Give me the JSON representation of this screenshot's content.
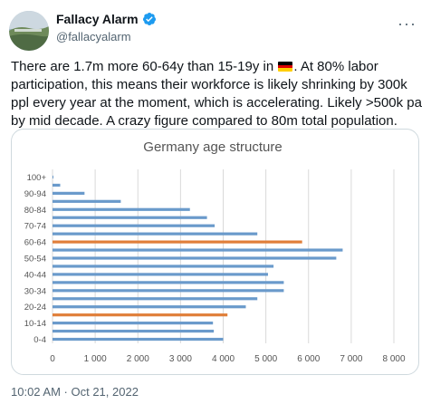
{
  "tweet": {
    "author_name": "Fallacy Alarm",
    "handle": "@fallacyalarm",
    "more_icon": "more-horizontal-icon",
    "text_before_flag": "There are 1.7m more 60-64y than 15-19y in ",
    "flag": "germany-flag",
    "text_after_flag": ". At 80% labor participation, this means their workforce is likely shrinking by 300k ppl every year at the moment, which is accelerating. Likely >500k pa by mid decade. A crazy figure compared to 80m total population.",
    "timestamp": "10:02 AM · Oct 21, 2022"
  },
  "colors": {
    "bar_default": "#6a9acb",
    "bar_highlight": "#e07f3a",
    "verified": "#1d9bf0",
    "grid": "#d9d9d9"
  },
  "chart_data": {
    "type": "bar",
    "orientation": "horizontal",
    "title": "Germany age structure",
    "xlabel": "",
    "ylabel": "",
    "xlim": [
      0,
      8000
    ],
    "xticks": [
      0,
      1000,
      2000,
      3000,
      4000,
      5000,
      6000,
      7000,
      8000
    ],
    "xtick_labels": [
      "0",
      "1 000",
      "2 000",
      "3 000",
      "4 000",
      "5 000",
      "6 000",
      "7 000",
      "8 000"
    ],
    "grid": "vertical",
    "categories": [
      "0-4",
      "5-9",
      "10-14",
      "15-19",
      "20-24",
      "25-29",
      "30-34",
      "35-39",
      "40-44",
      "45-49",
      "50-54",
      "55-59",
      "60-64",
      "65-69",
      "70-74",
      "75-79",
      "80-84",
      "85-89",
      "90-94",
      "95-99",
      "100+"
    ],
    "category_labels": [
      "0-4",
      "",
      "10-14",
      "",
      "20-24",
      "",
      "30-34",
      "",
      "40-44",
      "",
      "50-54",
      "",
      "60-64",
      "",
      "70-74",
      "",
      "80-84",
      "",
      "90-94",
      "",
      "100+"
    ],
    "values": [
      4000,
      3780,
      3760,
      4100,
      4530,
      4800,
      5420,
      5420,
      5050,
      5180,
      6650,
      6800,
      5850,
      4800,
      3800,
      3620,
      3220,
      1600,
      750,
      180,
      20
    ],
    "highlighted": [
      "15-19",
      "60-64"
    ]
  }
}
